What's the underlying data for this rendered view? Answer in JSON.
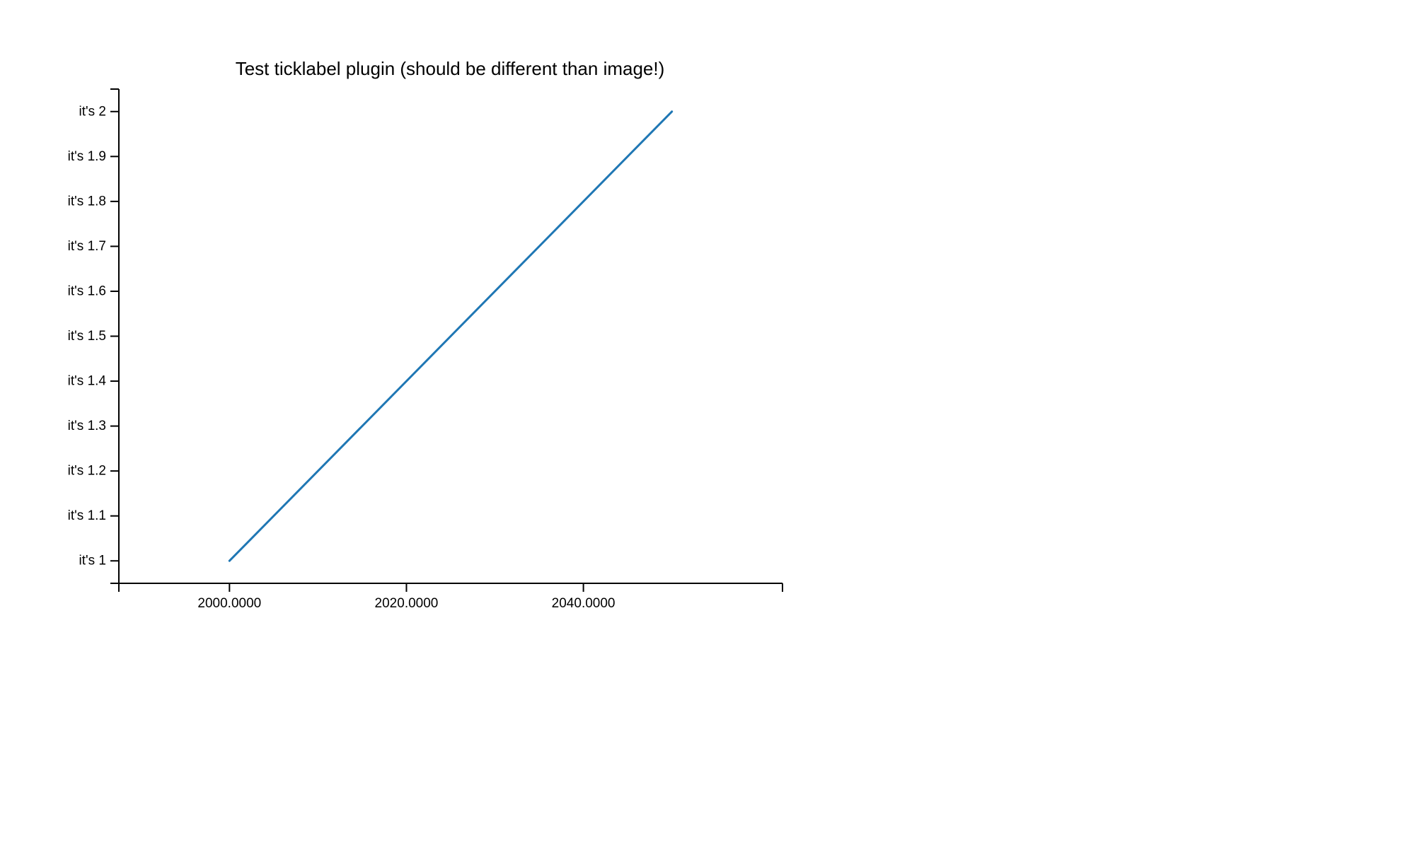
{
  "chart_data": {
    "type": "line",
    "title": "Test ticklabel plugin (should be different than image!)",
    "xlabel": "",
    "ylabel": "",
    "xlim": [
      1987.5,
      2062.5
    ],
    "ylim": [
      0.95,
      2.05
    ],
    "x_ticks": [
      2000,
      2020,
      2040
    ],
    "x_tick_labels": [
      "2000.0000",
      "2020.0000",
      "2040.0000"
    ],
    "y_ticks": [
      1,
      1.1,
      1.2,
      1.3,
      1.4,
      1.5,
      1.6,
      1.7,
      1.8,
      1.9,
      2
    ],
    "y_tick_labels": [
      "it's 1",
      "it's 1.1",
      "it's 1.2",
      "it's 1.3",
      "it's 1.4",
      "it's 1.5",
      "it's 1.6",
      "it's 1.7",
      "it's 1.8",
      "it's 1.9",
      "it's 2"
    ],
    "grid": false,
    "series": [
      {
        "x": [
          2000,
          2050
        ],
        "values": [
          1,
          2
        ],
        "color": "#1f77b4"
      }
    ]
  }
}
